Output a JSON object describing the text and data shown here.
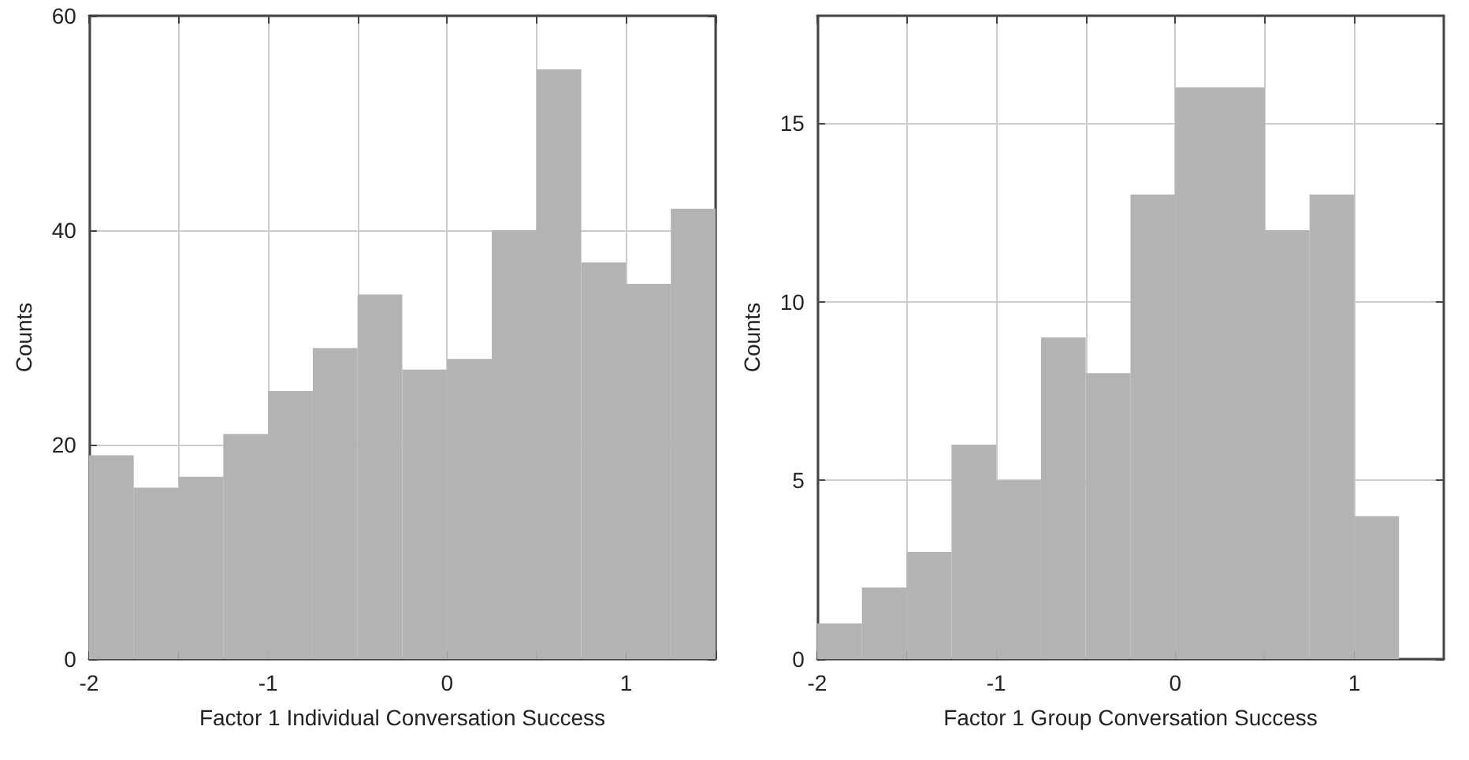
{
  "chart_data": [
    {
      "type": "histogram",
      "xlabel": "Factor 1 Individual Conversation Success",
      "ylabel": "Counts",
      "bins": [
        -2,
        -1.75,
        -1.5,
        -1.25,
        -1,
        -0.75,
        -0.5,
        -0.25,
        0,
        0.25,
        0.5,
        0.75,
        1,
        1.25,
        1.5
      ],
      "values": [
        19,
        16,
        17,
        21,
        25,
        29,
        34,
        27,
        28,
        40,
        55,
        37,
        35,
        42
      ],
      "color": "#b3b3b3",
      "xlim": [
        -2,
        1.5
      ],
      "xticks": [
        -2,
        {
          "value": -1.5,
          "label": null
        },
        -1,
        {
          "value": -0.5,
          "label": null
        },
        0,
        {
          "value": 0.5,
          "label": null
        },
        1,
        {
          "value": 1.5,
          "label": null
        }
      ],
      "ylim": [
        0,
        60
      ],
      "yticks": [
        0,
        20,
        40,
        60
      ],
      "grid": true
    },
    {
      "type": "histogram",
      "xlabel": "Factor 1 Group Conversation Success",
      "ylabel": "Counts",
      "bins": [
        -2,
        -1.75,
        -1.5,
        -1.25,
        -1,
        -0.75,
        -0.5,
        -0.25,
        0,
        0.25,
        0.5,
        0.75,
        1,
        1.25
      ],
      "values": [
        1,
        2,
        3,
        6,
        5,
        9,
        8,
        13,
        16,
        16,
        12,
        13,
        4
      ],
      "color": "#b3b3b3",
      "xlim": [
        -2,
        1.5
      ],
      "xticks": [
        -2,
        {
          "value": -1.5,
          "label": null
        },
        -1,
        {
          "value": -0.5,
          "label": null
        },
        0,
        {
          "value": 0.5,
          "label": null
        },
        1
      ],
      "ylim": [
        0,
        18
      ],
      "yticks": [
        0,
        5,
        10,
        15
      ],
      "grid": true
    }
  ]
}
